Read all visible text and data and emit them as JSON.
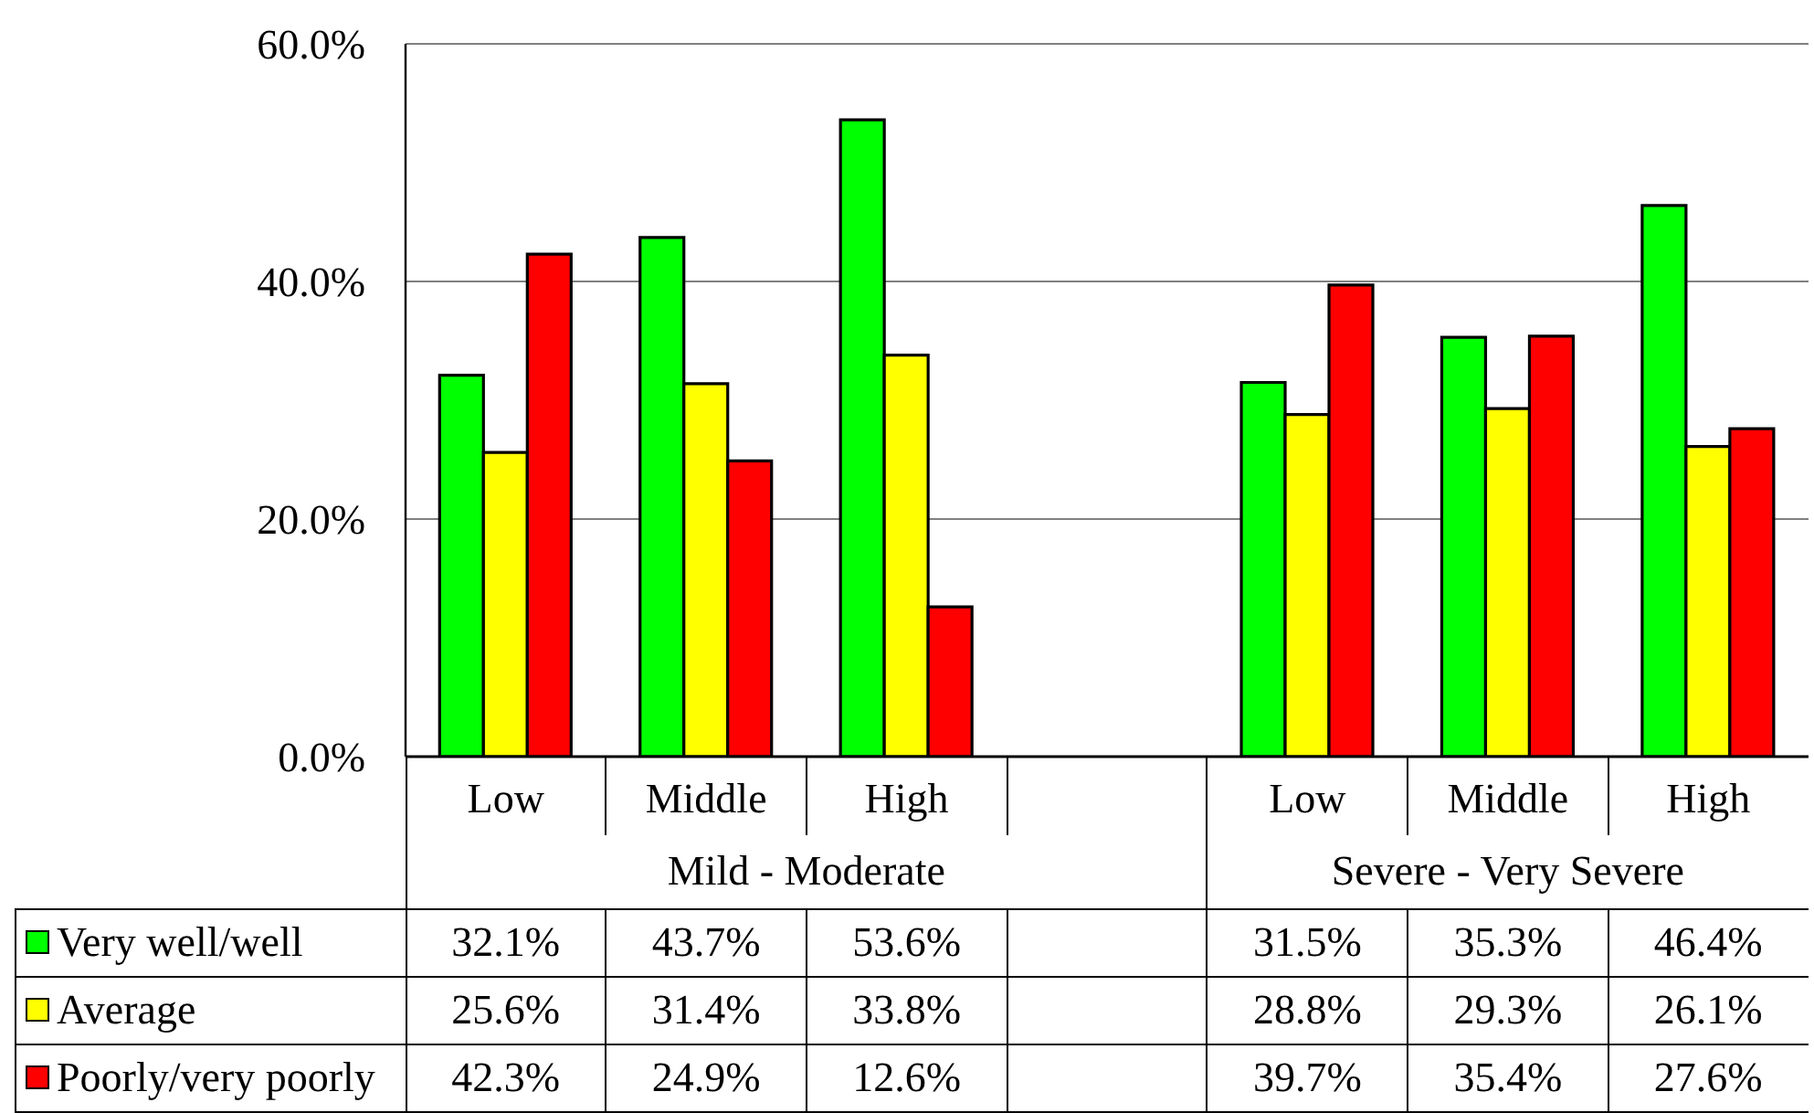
{
  "chart_data": {
    "type": "bar",
    "categories": [
      "Low",
      "Middle",
      "High",
      null,
      "Low",
      "Middle",
      "High"
    ],
    "series": [
      {
        "name": "Very well/well",
        "color": "#00ff00",
        "values": [
          32.1,
          43.7,
          53.6,
          null,
          31.5,
          35.3,
          46.4
        ],
        "value_labels": [
          "32.1%",
          "43.7%",
          "53.6%",
          null,
          "31.5%",
          "35.3%",
          "46.4%"
        ]
      },
      {
        "name": "Average",
        "color": "#ffff00",
        "values": [
          25.6,
          31.4,
          33.8,
          null,
          28.8,
          29.3,
          26.1
        ],
        "value_labels": [
          "25.6%",
          "31.4%",
          "33.8%",
          null,
          "28.8%",
          "29.3%",
          "26.1%"
        ]
      },
      {
        "name": "Poorly/very poorly",
        "color": "#ff0000",
        "values": [
          42.3,
          24.9,
          12.6,
          null,
          39.7,
          35.4,
          27.6
        ],
        "value_labels": [
          "42.3%",
          "24.9%",
          "12.6%",
          null,
          "39.7%",
          "35.4%",
          "27.6%"
        ]
      }
    ],
    "ylim": [
      0,
      60
    ],
    "yticks": [
      {
        "value": 0,
        "label": "0.0%"
      },
      {
        "value": 20,
        "label": "20.0%"
      },
      {
        "value": 40,
        "label": "40.0%"
      },
      {
        "value": 60,
        "label": "60.0%"
      }
    ],
    "grid": "y",
    "legend": "bottom",
    "annotations": [
      "Mild - Moderate",
      "Severe - Very Severe"
    ]
  }
}
